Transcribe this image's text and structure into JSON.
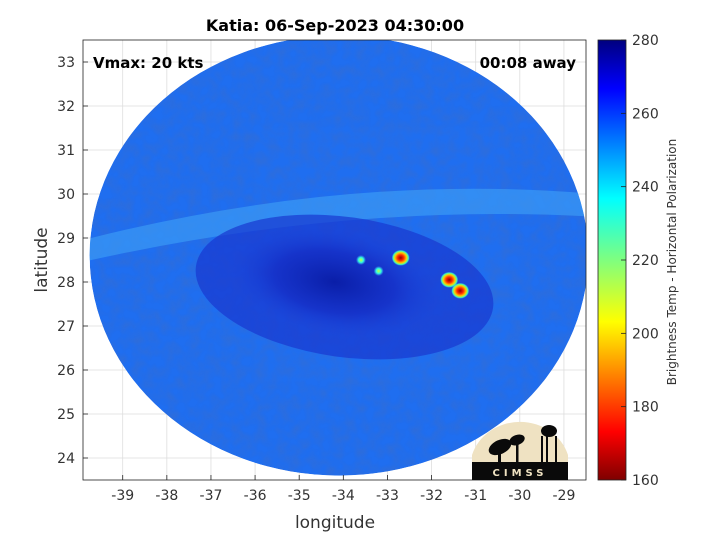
{
  "chart_data": {
    "type": "heatmap",
    "title": "Katia: 06-Sep-2023 04:30:00",
    "xlabel": "longitude",
    "ylabel": "latitude",
    "xlim": [
      -39.9,
      -28.5
    ],
    "ylim": [
      23.5,
      33.5
    ],
    "xticks": [
      -39,
      -38,
      -37,
      -36,
      -35,
      -34,
      -33,
      -32,
      -31,
      -30,
      -29
    ],
    "yticks": [
      24,
      25,
      26,
      27,
      28,
      29,
      30,
      31,
      32,
      33
    ],
    "grid": true,
    "annotations": {
      "vmax": "Vmax: 20 kts",
      "away": "00:08 away"
    },
    "colorbar": {
      "label": "Brightness Temp - Horizontal Polarization",
      "min": 160,
      "max": 280,
      "ticks": [
        160,
        180,
        200,
        220,
        240,
        260,
        280
      ]
    },
    "swath": {
      "center": [
        -34.1,
        28.6
      ],
      "radius_lon": 5.65,
      "radius_lat": 5.0,
      "background_value": 252
    },
    "features": [
      {
        "name": "storm-core",
        "lon": -34.2,
        "lat": 28.0,
        "value": 266
      },
      {
        "name": "cold-cell-1",
        "lon": -32.7,
        "lat": 28.55,
        "value": 195
      },
      {
        "name": "cold-cell-2",
        "lon": -31.6,
        "lat": 28.05,
        "value": 185
      },
      {
        "name": "cold-cell-3",
        "lon": -31.35,
        "lat": 27.8,
        "value": 175
      },
      {
        "name": "cold-cell-4",
        "lon": -33.6,
        "lat": 28.5,
        "value": 232
      },
      {
        "name": "cold-cell-5",
        "lon": -33.2,
        "lat": 28.25,
        "value": 238
      },
      {
        "name": "warm-band",
        "lon": -33.0,
        "lat": 29.9,
        "value": 242
      }
    ],
    "logo_text": "CIMSS"
  }
}
